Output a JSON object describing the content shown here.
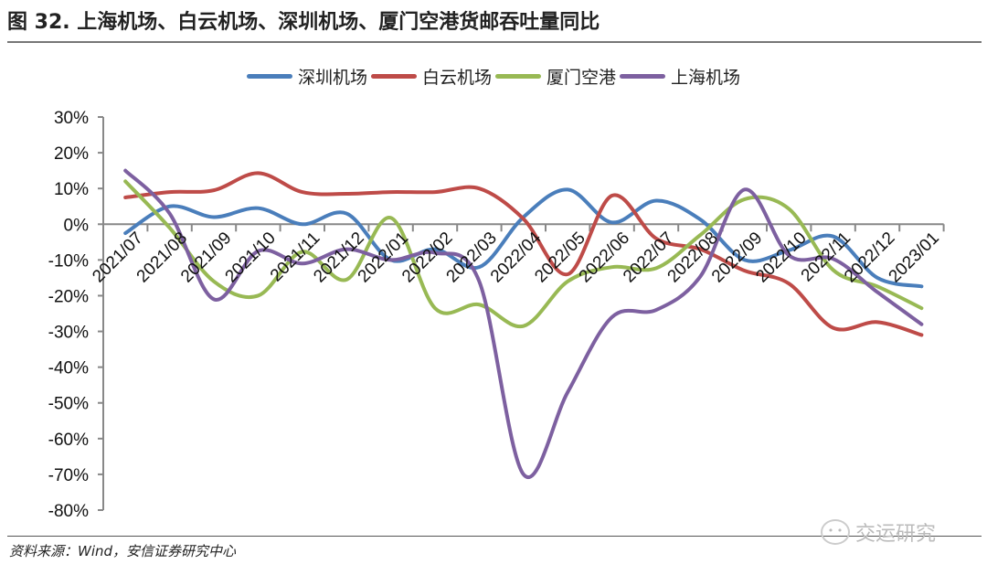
{
  "title": "图 32. 上海机场、白云机场、深圳机场、厦门空港货邮吞吐量同比",
  "source": "资料来源：Wind，安信证券研究中心",
  "watermark": "交运研究",
  "chart_data": {
    "type": "line",
    "title": "",
    "xlabel": "",
    "ylabel": "",
    "ylim": [
      -80,
      30
    ],
    "yticks": [
      "30%",
      "20%",
      "10%",
      "0%",
      "-10%",
      "-20%",
      "-30%",
      "-40%",
      "-50%",
      "-60%",
      "-70%",
      "-80%"
    ],
    "ytick_values": [
      30,
      20,
      10,
      0,
      -10,
      -20,
      -30,
      -40,
      -50,
      -60,
      -70,
      -80
    ],
    "grid": false,
    "legend_position": "top",
    "smooth": true,
    "categories": [
      "2021/07",
      "2021/08",
      "2021/09",
      "2021/10",
      "2021/11",
      "2021/12",
      "2022/01",
      "2022/02",
      "2022/03",
      "2022/04",
      "2022/05",
      "2022/06",
      "2022/07",
      "2022/08",
      "2022/09",
      "2022/10",
      "2022/11",
      "2022/12",
      "2023/01"
    ],
    "series": [
      {
        "name": "深圳机场",
        "color": "#4a7ebb",
        "values": [
          -2.5,
          5,
          2,
          4.5,
          0,
          3,
          -10,
          -7,
          -12,
          2,
          9.7,
          0.5,
          6.6,
          1.3,
          -10,
          -7.3,
          -3.4,
          -15,
          -17.4
        ]
      },
      {
        "name": "白云机场",
        "color": "#be4b48",
        "values": [
          7.5,
          9,
          9.5,
          14.3,
          9,
          8.5,
          9,
          9,
          10,
          1.5,
          -14,
          8,
          -4,
          -7,
          -13,
          -16.6,
          -29,
          -27.4,
          -31
        ]
      },
      {
        "name": "厦门空港",
        "color": "#98b954",
        "values": [
          12,
          -1,
          -16,
          -20,
          -7.7,
          -15.5,
          1.8,
          -23.5,
          -22.5,
          -28.5,
          -16,
          -12,
          -12.3,
          -3,
          7,
          4.3,
          -12.8,
          -17.4,
          -23.5
        ]
      },
      {
        "name": "上海机场",
        "color": "#7d60a0",
        "values": [
          15,
          3,
          -21,
          -7.5,
          -11,
          -7,
          -10,
          -8,
          -16,
          -70,
          -47,
          -26,
          -24,
          -14.6,
          9.7,
          -8.7,
          -9.7,
          -19,
          -28
        ]
      }
    ]
  }
}
